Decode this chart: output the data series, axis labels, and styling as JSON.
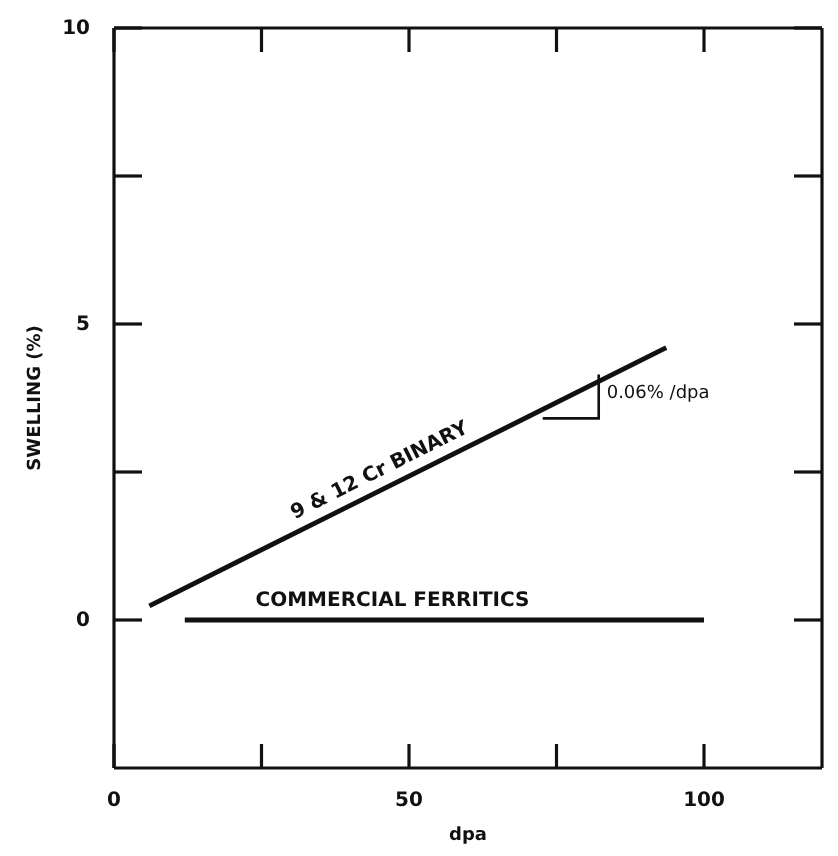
{
  "chart_data": {
    "type": "line",
    "xlabel": "dpa",
    "ylabel": "SWELLING (%)",
    "xlim": [
      0,
      120
    ],
    "ylim": [
      -2.5,
      10
    ],
    "xticks": [
      0,
      {
        "value": 25,
        "label": null
      },
      50,
      {
        "value": 75,
        "label": null
      },
      100
    ],
    "yticks": [
      0,
      {
        "value": 2.5,
        "label": null
      },
      5,
      {
        "value": 7.5,
        "label": null
      },
      10
    ],
    "grid": false,
    "legend": false,
    "marker": "none",
    "line_style": "solid",
    "series": [
      {
        "name": "9 & 12 Cr BINARY",
        "color": "#111111",
        "x": [
          6,
          93.6
        ],
        "values": [
          0.24,
          4.6
        ]
      },
      {
        "name": "COMMERCIAL FERRITICS",
        "color": "#111111",
        "x": [
          12,
          100
        ],
        "values": [
          0,
          0
        ]
      }
    ],
    "annotations": [
      "0.06% /dpa"
    ]
  }
}
